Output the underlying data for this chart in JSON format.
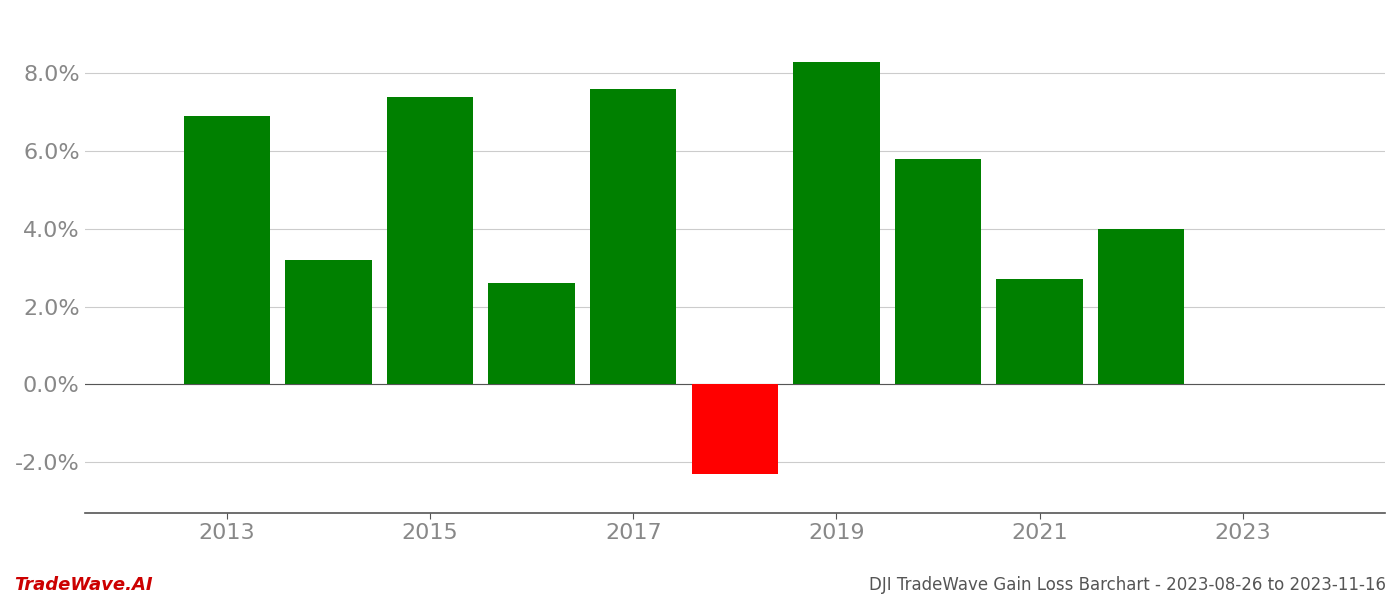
{
  "years": [
    2013,
    2014,
    2015,
    2016,
    2017,
    2018,
    2019,
    2020,
    2021,
    2022
  ],
  "values": [
    0.069,
    0.032,
    0.074,
    0.026,
    0.076,
    -0.023,
    0.083,
    0.058,
    0.027,
    0.04
  ],
  "bar_colors": [
    "#008000",
    "#008000",
    "#008000",
    "#008000",
    "#008000",
    "#ff0000",
    "#008000",
    "#008000",
    "#008000",
    "#008000"
  ],
  "title": "DJI TradeWave Gain Loss Barchart - 2023-08-26 to 2023-11-16",
  "footer_left": "TradeWave.AI",
  "background_color": "#ffffff",
  "grid_color": "#cccccc",
  "axis_color": "#888888",
  "ytick_values": [
    -0.02,
    0.0,
    0.02,
    0.04,
    0.06,
    0.08
  ],
  "xtick_labels": [
    "2013",
    "2015",
    "2017",
    "2019",
    "2021",
    "2023"
  ],
  "xtick_values": [
    2013,
    2015,
    2017,
    2019,
    2021,
    2023
  ],
  "ylim": [
    -0.033,
    0.095
  ],
  "xlim": [
    2011.6,
    2024.4
  ],
  "bar_width": 0.85
}
